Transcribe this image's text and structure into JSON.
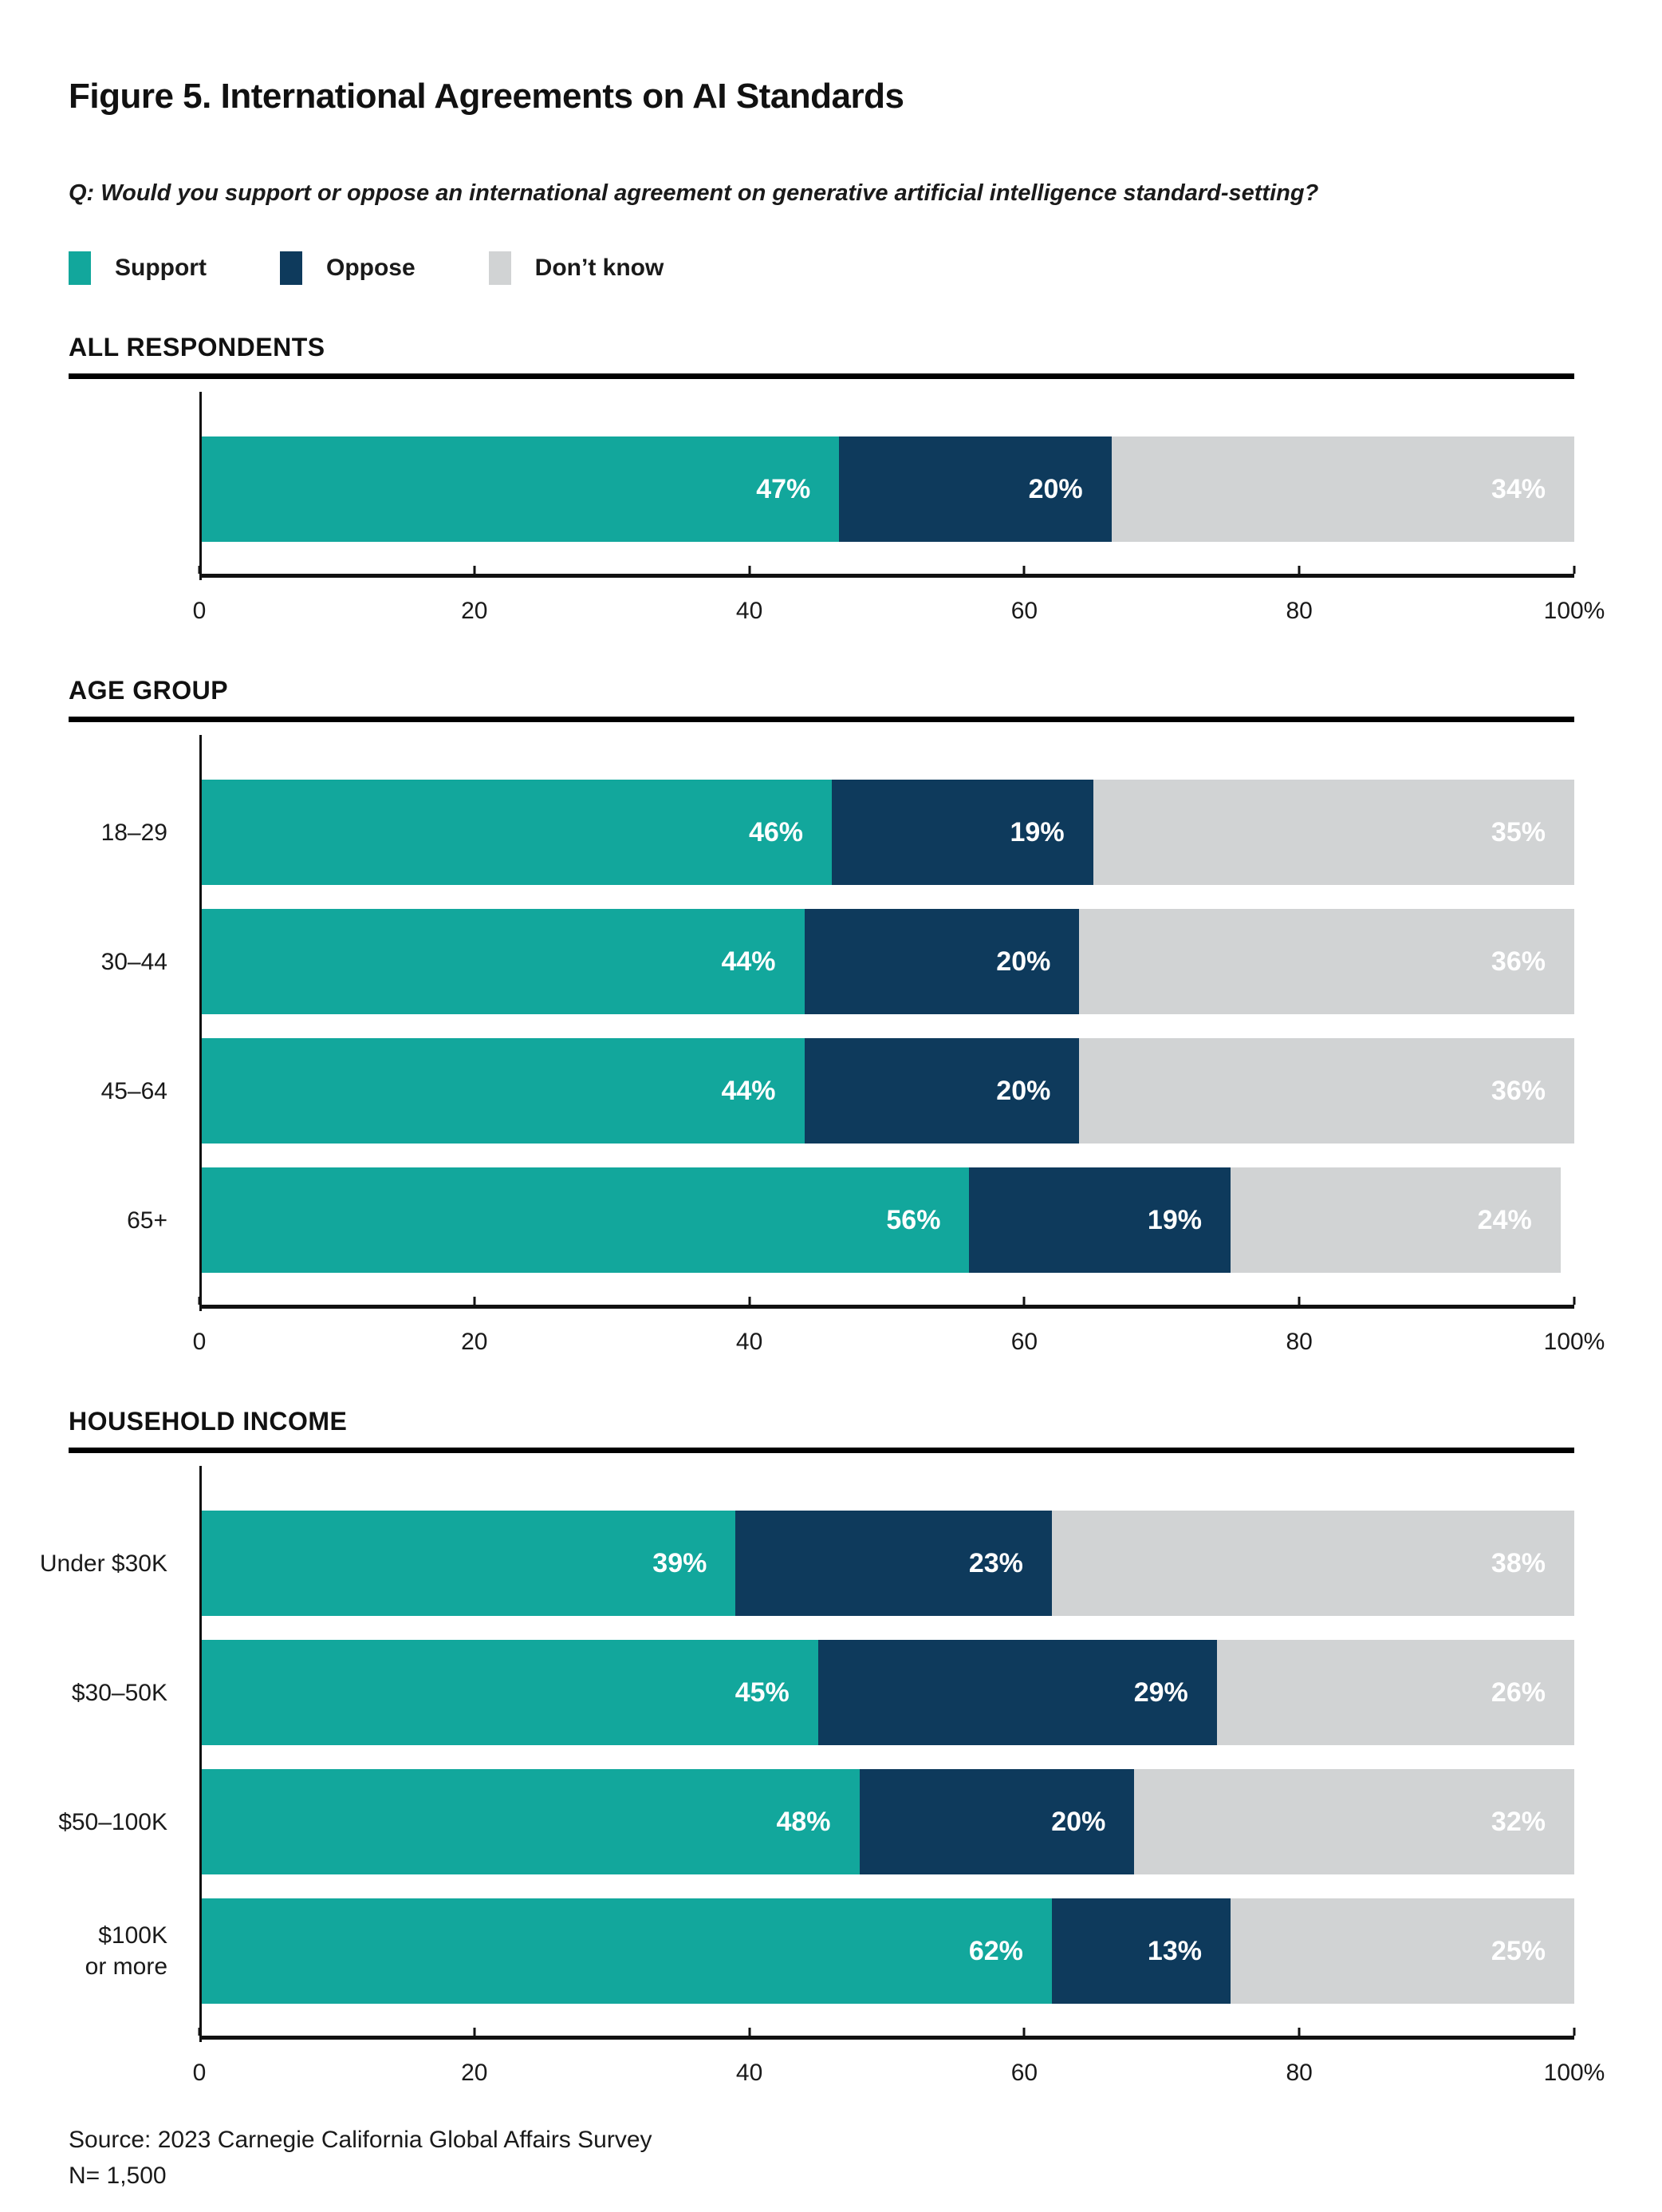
{
  "title": "Figure 5. International Agreements on AI Standards",
  "question": "Q: Would you support or oppose an international agreement on generative artificial intelligence standard-setting?",
  "legend": [
    {
      "label": "Support",
      "color": "#12A79C"
    },
    {
      "label": "Oppose",
      "color": "#0E3A5C"
    },
    {
      "label": "Don’t know",
      "color": "#D1D3D4"
    }
  ],
  "colors": {
    "support": "#12A79C",
    "oppose": "#0E3A5C",
    "dont_know": "#D1D3D4",
    "text": "#1A1A1A",
    "bar_value_text": "#FFFFFF",
    "axis": "#111111"
  },
  "value_suffix": "%",
  "chart_data": [
    {
      "type": "bar",
      "orientation": "horizontal",
      "stacked": true,
      "section": "ALL RESPONDENTS",
      "categories": [
        ""
      ],
      "series": [
        {
          "name": "Support",
          "values": [
            47
          ]
        },
        {
          "name": "Oppose",
          "values": [
            20
          ]
        },
        {
          "name": "Don’t know",
          "values": [
            34
          ]
        }
      ],
      "xlim": [
        0,
        100
      ],
      "tick_labels": [
        "0",
        "20",
        "40",
        "60",
        "80",
        "100%"
      ],
      "grid": false,
      "legend_position": "top"
    },
    {
      "type": "bar",
      "orientation": "horizontal",
      "stacked": true,
      "section": "AGE GROUP",
      "categories": [
        "18–29",
        "30–44",
        "45–64",
        "65+"
      ],
      "series": [
        {
          "name": "Support",
          "values": [
            46,
            44,
            44,
            56
          ]
        },
        {
          "name": "Oppose",
          "values": [
            19,
            20,
            20,
            19
          ]
        },
        {
          "name": "Don’t know",
          "values": [
            35,
            36,
            36,
            24
          ]
        }
      ],
      "xlim": [
        0,
        100
      ],
      "tick_labels": [
        "0",
        "20",
        "40",
        "60",
        "80",
        "100%"
      ],
      "grid": false,
      "legend_position": "top"
    },
    {
      "type": "bar",
      "orientation": "horizontal",
      "stacked": true,
      "section": "HOUSEHOLD INCOME",
      "categories": [
        "Under $30K",
        "$30–50K",
        "$50–100K",
        "$100K\nor more"
      ],
      "series": [
        {
          "name": "Support",
          "values": [
            39,
            45,
            48,
            62
          ]
        },
        {
          "name": "Oppose",
          "values": [
            23,
            29,
            20,
            13
          ]
        },
        {
          "name": "Don’t know",
          "values": [
            38,
            26,
            32,
            25
          ]
        }
      ],
      "xlim": [
        0,
        100
      ],
      "tick_labels": [
        "0",
        "20",
        "40",
        "60",
        "80",
        "100%"
      ],
      "grid": false,
      "legend_position": "top"
    }
  ],
  "source_line1": "Source: 2023 Carnegie California Global Affairs Survey",
  "source_line2": "N= 1,500"
}
